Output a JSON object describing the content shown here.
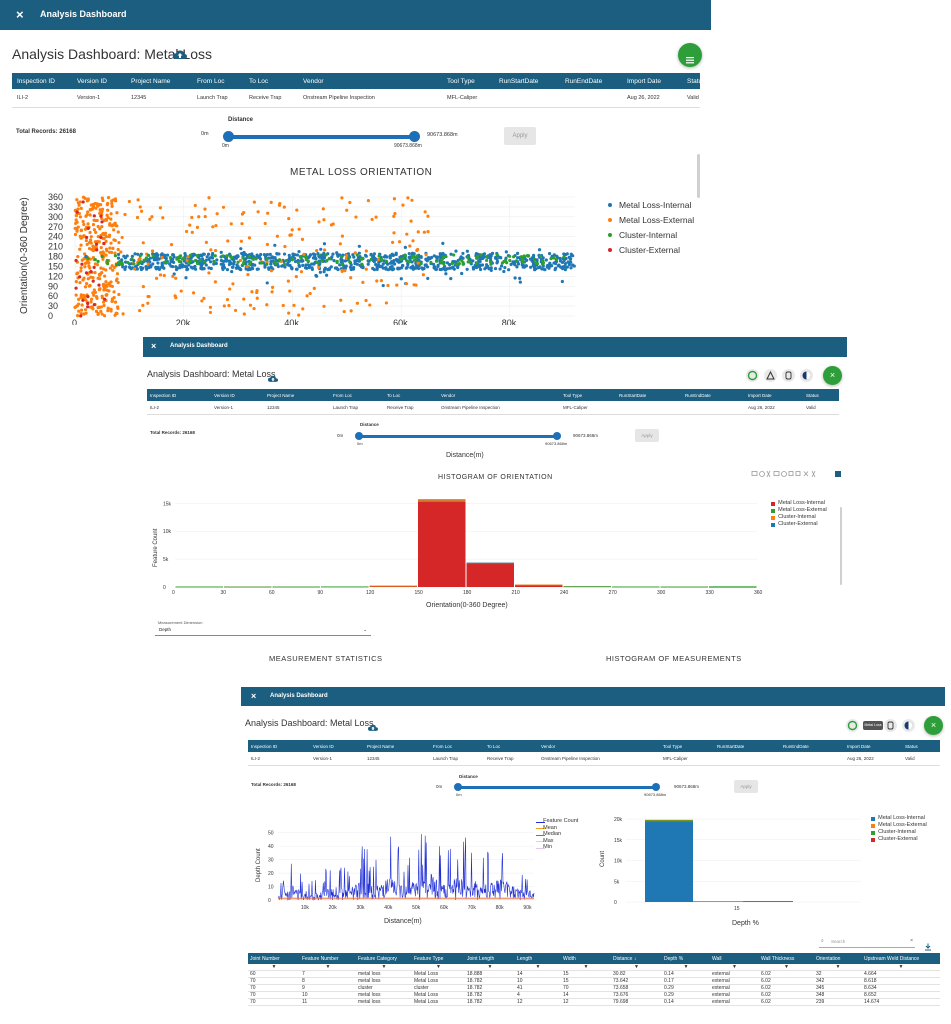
{
  "app": {
    "window_title": "Analysis Dashboard",
    "page_title": "Analysis Dashboard: Metal Loss",
    "close_glyph": "×",
    "menu_icon": "menu-icon",
    "upload_icon": "cloud-upload-icon"
  },
  "inspection_table": {
    "headers": [
      "Inspection ID",
      "Version ID",
      "Project Name",
      "From Loc",
      "To Loc",
      "Vendor",
      "Tool Type",
      "RunStartDate",
      "RunEndDate",
      "Import Date",
      "Status"
    ],
    "row": [
      "ILI-2",
      "Version-1",
      "12345",
      "Launch Trap",
      "Receive Trap",
      "Onstream Pipeline Inspection",
      "MFL-Caliper",
      "",
      "",
      "Aug 26, 2022",
      "Valid"
    ]
  },
  "filters": {
    "total_records": "Total Records: 26168",
    "distance_label": "Distance",
    "min_left": "0m",
    "min_below": "0m",
    "max_value": "90673.868m",
    "max_below": "90673.868m",
    "apply_label": "Apply",
    "distance_axis_label": "Distance(m)"
  },
  "toolbar_icons": [
    "help-icon",
    "dashboard-icon",
    "hand-icon",
    "contrast-icon"
  ],
  "tooltip": "Metal Loss",
  "orientation_chart": {
    "title": "METAL LOSS ORIENTATION",
    "ylabel": "Orientation(0-360 Degree)",
    "yticks": [
      "360",
      "330",
      "300",
      "270",
      "240",
      "210",
      "180",
      "150",
      "120",
      "90",
      "60",
      "30",
      "0"
    ],
    "xticks": [
      "0",
      "20k",
      "40k",
      "60k",
      "80k"
    ],
    "legend": [
      {
        "name": "Metal Loss-Internal",
        "color": "#1f77b4"
      },
      {
        "name": "Metal Loss-External",
        "color": "#ff7f0e"
      },
      {
        "name": "Cluster-Internal",
        "color": "#2ca02c"
      },
      {
        "name": "Cluster-External",
        "color": "#d62728"
      }
    ]
  },
  "orientation_histogram": {
    "title": "HISTOGRAM OF ORIENTATION",
    "ylabel": "Feature Count",
    "xlabel": "Orientation(0-360 Degree)",
    "yticks": [
      "15k",
      "10k",
      "5k",
      "0"
    ],
    "xticks": [
      "0",
      "30",
      "60",
      "90",
      "120",
      "150",
      "180",
      "210",
      "240",
      "270",
      "300",
      "330",
      "360"
    ],
    "legend": [
      {
        "name": "Metal Loss-Internal",
        "color": "#d62728"
      },
      {
        "name": "Metal Loss-External",
        "color": "#2ca02c"
      },
      {
        "name": "Cluster-Internal",
        "color": "#ff7f0e"
      },
      {
        "name": "Cluster-External",
        "color": "#1f77b4"
      }
    ]
  },
  "measurement": {
    "dimension_label": "Measurement Dimension",
    "dimension_value": "Depth",
    "stats_title": "MEASUREMENT STATISTICS",
    "hist_title": "HISTOGRAM OF MEASUREMENTS"
  },
  "depth_chart": {
    "ylabel": "Depth Count",
    "xlabel": "Distance(m)",
    "yticks": [
      "50",
      "40",
      "30",
      "20",
      "10",
      "0"
    ],
    "xticks": [
      "10k",
      "20k",
      "30k",
      "40k",
      "50k",
      "60k",
      "70k",
      "80k",
      "90k"
    ],
    "legend": [
      {
        "name": "Feature Count",
        "color": "#1f2fd6"
      },
      {
        "name": "Mean",
        "color": "#f0a020"
      },
      {
        "name": "Median",
        "color": "#e04070"
      },
      {
        "name": "Max",
        "color": "#f6d0a0"
      },
      {
        "name": "Min",
        "color": "#e0c8e8"
      }
    ]
  },
  "depth_histogram": {
    "ylabel": "Count",
    "xlabel": "Depth %",
    "yticks": [
      "20k",
      "15k",
      "10k",
      "5k",
      "0"
    ],
    "xtick": "15",
    "legend": [
      {
        "name": "Metal Loss-Internal",
        "color": "#1f77b4"
      },
      {
        "name": "Metal Loss-External",
        "color": "#ff7f0e"
      },
      {
        "name": "Cluster-Internal",
        "color": "#2ca02c"
      },
      {
        "name": "Cluster-External",
        "color": "#d62728"
      }
    ]
  },
  "chart_data": [
    {
      "type": "scatter",
      "title": "METAL LOSS ORIENTATION",
      "ylabel": "Orientation(0-360 Degree)",
      "ylim": [
        0,
        360
      ],
      "xlim": [
        0,
        92000
      ],
      "series": [
        {
          "name": "Metal Loss-Internal",
          "x": [
            2000,
            8000,
            15000,
            22000,
            30000,
            36000,
            45000,
            55000,
            65000,
            75000,
            85000,
            90000
          ],
          "y": [
            180,
            175,
            170,
            185,
            180,
            175,
            178,
            172,
            176,
            174,
            170,
            168
          ]
        },
        {
          "name": "Metal Loss-External",
          "x": [
            1000,
            3000,
            5000,
            12000,
            18000,
            25000,
            35000,
            50000,
            62000
          ],
          "y": [
            300,
            240,
            60,
            330,
            120,
            200,
            280,
            320,
            350
          ]
        },
        {
          "name": "Cluster-Internal",
          "x": [
            5000,
            20000,
            40000,
            60000,
            80000
          ],
          "y": [
            180,
            175,
            170,
            172,
            168
          ]
        },
        {
          "name": "Cluster-External",
          "x": [
            1500,
            4000
          ],
          "y": [
            345,
            200
          ]
        }
      ]
    },
    {
      "type": "bar",
      "title": "HISTOGRAM OF ORIENTATION",
      "xlabel": "Orientation(0-360 Degree)",
      "ylabel": "Feature Count",
      "categories": [
        "0-30",
        "30-60",
        "60-90",
        "90-120",
        "120-150",
        "150-180",
        "180-210",
        "210-240",
        "240-270",
        "270-300",
        "300-330",
        "330-360"
      ],
      "series": [
        {
          "name": "Metal Loss-Internal",
          "values": [
            80,
            60,
            70,
            90,
            200,
            15300,
            4200,
            400,
            120,
            80,
            60,
            40
          ]
        },
        {
          "name": "Metal Loss-External",
          "values": [
            10,
            10,
            10,
            10,
            20,
            100,
            60,
            20,
            10,
            10,
            20,
            80
          ]
        },
        {
          "name": "Cluster-Internal",
          "values": [
            0,
            0,
            0,
            0,
            10,
            300,
            100,
            10,
            0,
            0,
            0,
            0
          ]
        },
        {
          "name": "Cluster-External",
          "values": [
            0,
            0,
            0,
            0,
            0,
            10,
            5,
            0,
            0,
            0,
            0,
            0
          ]
        }
      ],
      "ylim": [
        0,
        16500
      ]
    },
    {
      "type": "line",
      "xlabel": "Distance(m)",
      "ylabel": "Depth Count",
      "xlim": [
        0,
        92000
      ],
      "ylim": [
        0,
        55
      ],
      "series": [
        {
          "name": "Feature Count",
          "x": [
            0,
            5000,
            10000,
            15000,
            20000,
            25000,
            30000,
            35000,
            40000,
            45000,
            50000,
            55000,
            60000,
            65000,
            70000,
            75000,
            80000,
            85000,
            90000
          ],
          "y": [
            5,
            22,
            8,
            12,
            18,
            15,
            25,
            20,
            30,
            22,
            28,
            35,
            20,
            32,
            26,
            24,
            30,
            18,
            14
          ]
        }
      ]
    },
    {
      "type": "bar",
      "xlabel": "Depth %",
      "ylabel": "Count",
      "categories": [
        "0-30"
      ],
      "series": [
        {
          "name": "Metal Loss-Internal",
          "values": [
            19500
          ]
        },
        {
          "name": "Metal Loss-External",
          "values": [
            200
          ]
        },
        {
          "name": "Cluster-Internal",
          "values": [
            100
          ]
        },
        {
          "name": "Cluster-External",
          "values": [
            0
          ]
        }
      ],
      "ylim": [
        0,
        20000
      ]
    }
  ],
  "joints_table": {
    "search_placeholder": "Search",
    "headers": [
      "Joint Number",
      "Feature Number",
      "Feature Category",
      "Feature Type",
      "Joint Length",
      "Length",
      "Width",
      "Distance",
      "Depth %",
      "Wall",
      "Wall Thickness",
      "Orientation",
      "Upstream Weld Distance"
    ],
    "filter_glyph": "▼",
    "sort_glyph": "↓",
    "rows": [
      [
        "60",
        "7",
        "metal loss",
        "Metal Loss",
        "18.888",
        "14",
        "15",
        "30.82",
        "0.14",
        "external",
        "6.02",
        "32",
        "4.664"
      ],
      [
        "70",
        "8",
        "metal loss",
        "Metal Loss",
        "18.782",
        "10",
        "15",
        "73.642",
        "0.17",
        "external",
        "6.02",
        "342",
        "8.618"
      ],
      [
        "70",
        "9",
        "cluster",
        "cluster",
        "18.782",
        "41",
        "70",
        "73.658",
        "0.29",
        "external",
        "6.02",
        "345",
        "8.634"
      ],
      [
        "70",
        "10",
        "metal loss",
        "Metal Loss",
        "18.782",
        "4",
        "14",
        "73.676",
        "0.29",
        "external",
        "6.02",
        "348",
        "8.652"
      ],
      [
        "70",
        "11",
        "metal loss",
        "Metal Loss",
        "18.782",
        "12",
        "12",
        "79.698",
        "0.14",
        "external",
        "6.02",
        "239",
        "14.674"
      ]
    ]
  }
}
